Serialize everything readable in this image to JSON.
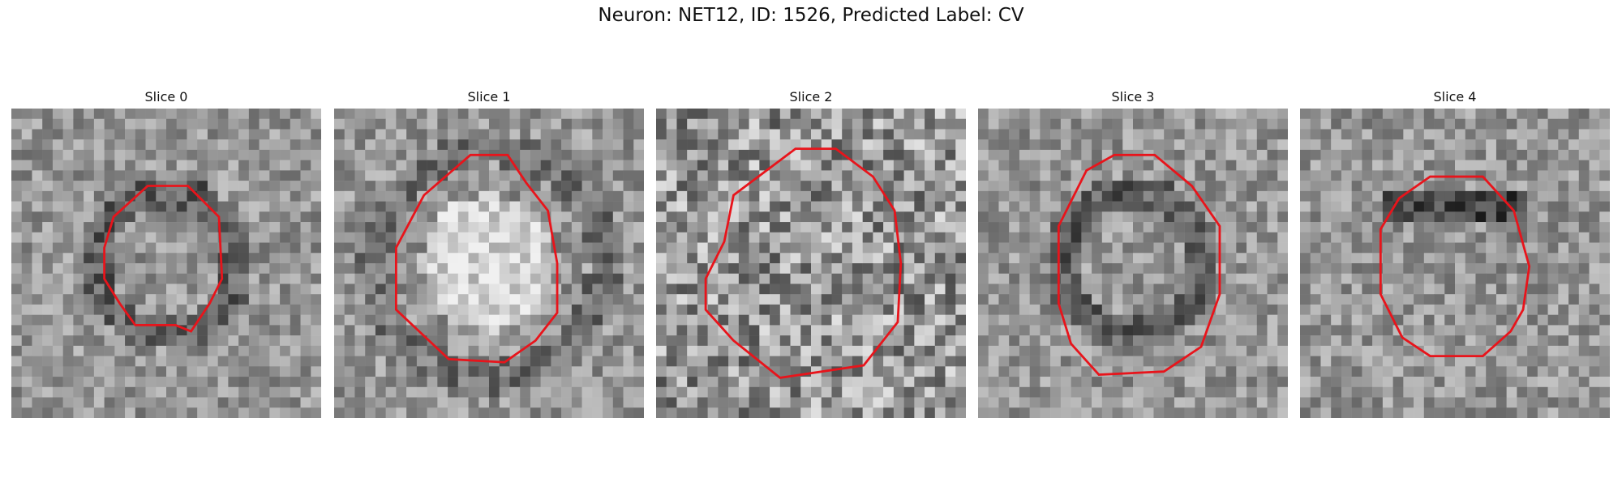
{
  "figure": {
    "title": "Neuron: NET12, ID: 1526, Predicted Label: CV"
  },
  "contour_color": "#e8141b",
  "slices": [
    {
      "label": "Slice 0",
      "seed": 11,
      "center": [
        0.5,
        0.5
      ],
      "contour": [
        [
          0.44,
          0.25
        ],
        [
          0.57,
          0.25
        ],
        [
          0.67,
          0.35
        ],
        [
          0.68,
          0.55
        ],
        [
          0.64,
          0.63
        ],
        [
          0.58,
          0.72
        ],
        [
          0.53,
          0.7
        ],
        [
          0.4,
          0.7
        ],
        [
          0.35,
          0.63
        ],
        [
          0.3,
          0.55
        ],
        [
          0.3,
          0.45
        ],
        [
          0.33,
          0.35
        ]
      ],
      "dark_ring": true
    },
    {
      "label": "Slice 1",
      "seed": 23,
      "center": [
        0.5,
        0.5
      ],
      "contour": [
        [
          0.44,
          0.15
        ],
        [
          0.56,
          0.15
        ],
        [
          0.62,
          0.24
        ],
        [
          0.69,
          0.33
        ],
        [
          0.72,
          0.5
        ],
        [
          0.72,
          0.66
        ],
        [
          0.65,
          0.75
        ],
        [
          0.55,
          0.82
        ],
        [
          0.37,
          0.81
        ],
        [
          0.2,
          0.65
        ],
        [
          0.2,
          0.45
        ],
        [
          0.29,
          0.28
        ]
      ],
      "bright_center": true
    },
    {
      "label": "Slice 2",
      "seed": 37,
      "center": [
        0.5,
        0.5
      ],
      "contour": [
        [
          0.45,
          0.13
        ],
        [
          0.58,
          0.13
        ],
        [
          0.7,
          0.22
        ],
        [
          0.77,
          0.33
        ],
        [
          0.79,
          0.5
        ],
        [
          0.78,
          0.69
        ],
        [
          0.67,
          0.83
        ],
        [
          0.4,
          0.87
        ],
        [
          0.25,
          0.75
        ],
        [
          0.16,
          0.65
        ],
        [
          0.16,
          0.55
        ],
        [
          0.22,
          0.43
        ],
        [
          0.25,
          0.28
        ]
      ],
      "noisy": true
    },
    {
      "label": "Slice 3",
      "seed": 51,
      "center": [
        0.5,
        0.5
      ],
      "contour": [
        [
          0.44,
          0.15
        ],
        [
          0.57,
          0.15
        ],
        [
          0.69,
          0.25
        ],
        [
          0.78,
          0.38
        ],
        [
          0.78,
          0.6
        ],
        [
          0.72,
          0.77
        ],
        [
          0.6,
          0.85
        ],
        [
          0.39,
          0.86
        ],
        [
          0.3,
          0.76
        ],
        [
          0.26,
          0.63
        ],
        [
          0.26,
          0.38
        ],
        [
          0.35,
          0.2
        ]
      ],
      "dark_ring": true
    },
    {
      "label": "Slice 4",
      "seed": 67,
      "center": [
        0.5,
        0.5
      ],
      "contour": [
        [
          0.42,
          0.22
        ],
        [
          0.59,
          0.22
        ],
        [
          0.69,
          0.33
        ],
        [
          0.74,
          0.51
        ],
        [
          0.72,
          0.65
        ],
        [
          0.68,
          0.72
        ],
        [
          0.59,
          0.8
        ],
        [
          0.42,
          0.8
        ],
        [
          0.33,
          0.74
        ],
        [
          0.26,
          0.6
        ],
        [
          0.26,
          0.39
        ],
        [
          0.32,
          0.29
        ]
      ],
      "dark_top": true
    }
  ]
}
